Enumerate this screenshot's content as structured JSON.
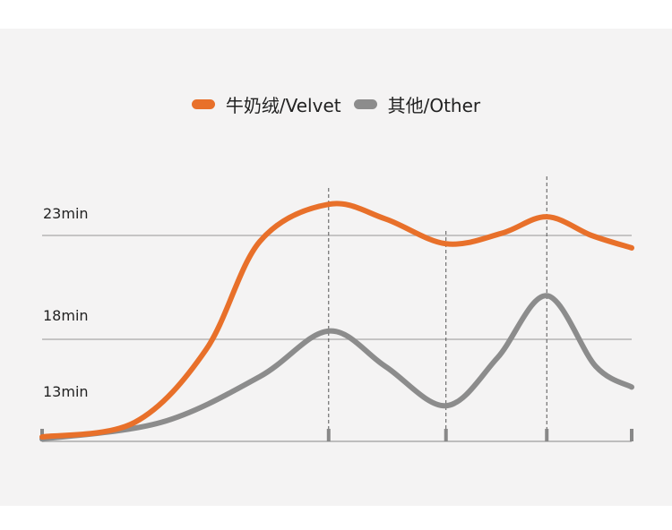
{
  "chart_data": {
    "type": "line",
    "title": "",
    "xlabel": "",
    "ylabel": "",
    "y_tick_labels": [
      "23min",
      "18min",
      "13min"
    ],
    "y_gridlines": [
      23,
      18
    ],
    "ylim": [
      13,
      25
    ],
    "x_ticks": [
      0,
      48.6,
      68.5,
      85.6,
      100
    ],
    "x_dashed_markers": [
      48.6,
      68.5,
      85.6
    ],
    "legend_position": "top-center",
    "series": [
      {
        "name": "牛奶绒/Velvet",
        "color": "#e8702a",
        "points": [
          [
            0,
            13.3
          ],
          [
            15.7,
            14.0
          ],
          [
            27.8,
            17.5
          ],
          [
            36.9,
            22.7
          ],
          [
            48.6,
            24.5
          ],
          [
            58.2,
            23.8
          ],
          [
            68.5,
            22.6
          ],
          [
            77.9,
            23.1
          ],
          [
            85.6,
            23.9
          ],
          [
            93.2,
            23.0
          ],
          [
            100,
            22.4
          ]
        ]
      },
      {
        "name": "其他/Other",
        "color": "#8c8c8c",
        "points": [
          [
            0,
            13.2
          ],
          [
            20.2,
            14.0
          ],
          [
            36.9,
            16.2
          ],
          [
            48.6,
            18.4
          ],
          [
            58.2,
            16.7
          ],
          [
            68.5,
            14.8
          ],
          [
            77.2,
            17.1
          ],
          [
            85.6,
            20.1
          ],
          [
            93.9,
            16.7
          ],
          [
            100,
            15.7
          ]
        ]
      }
    ]
  }
}
